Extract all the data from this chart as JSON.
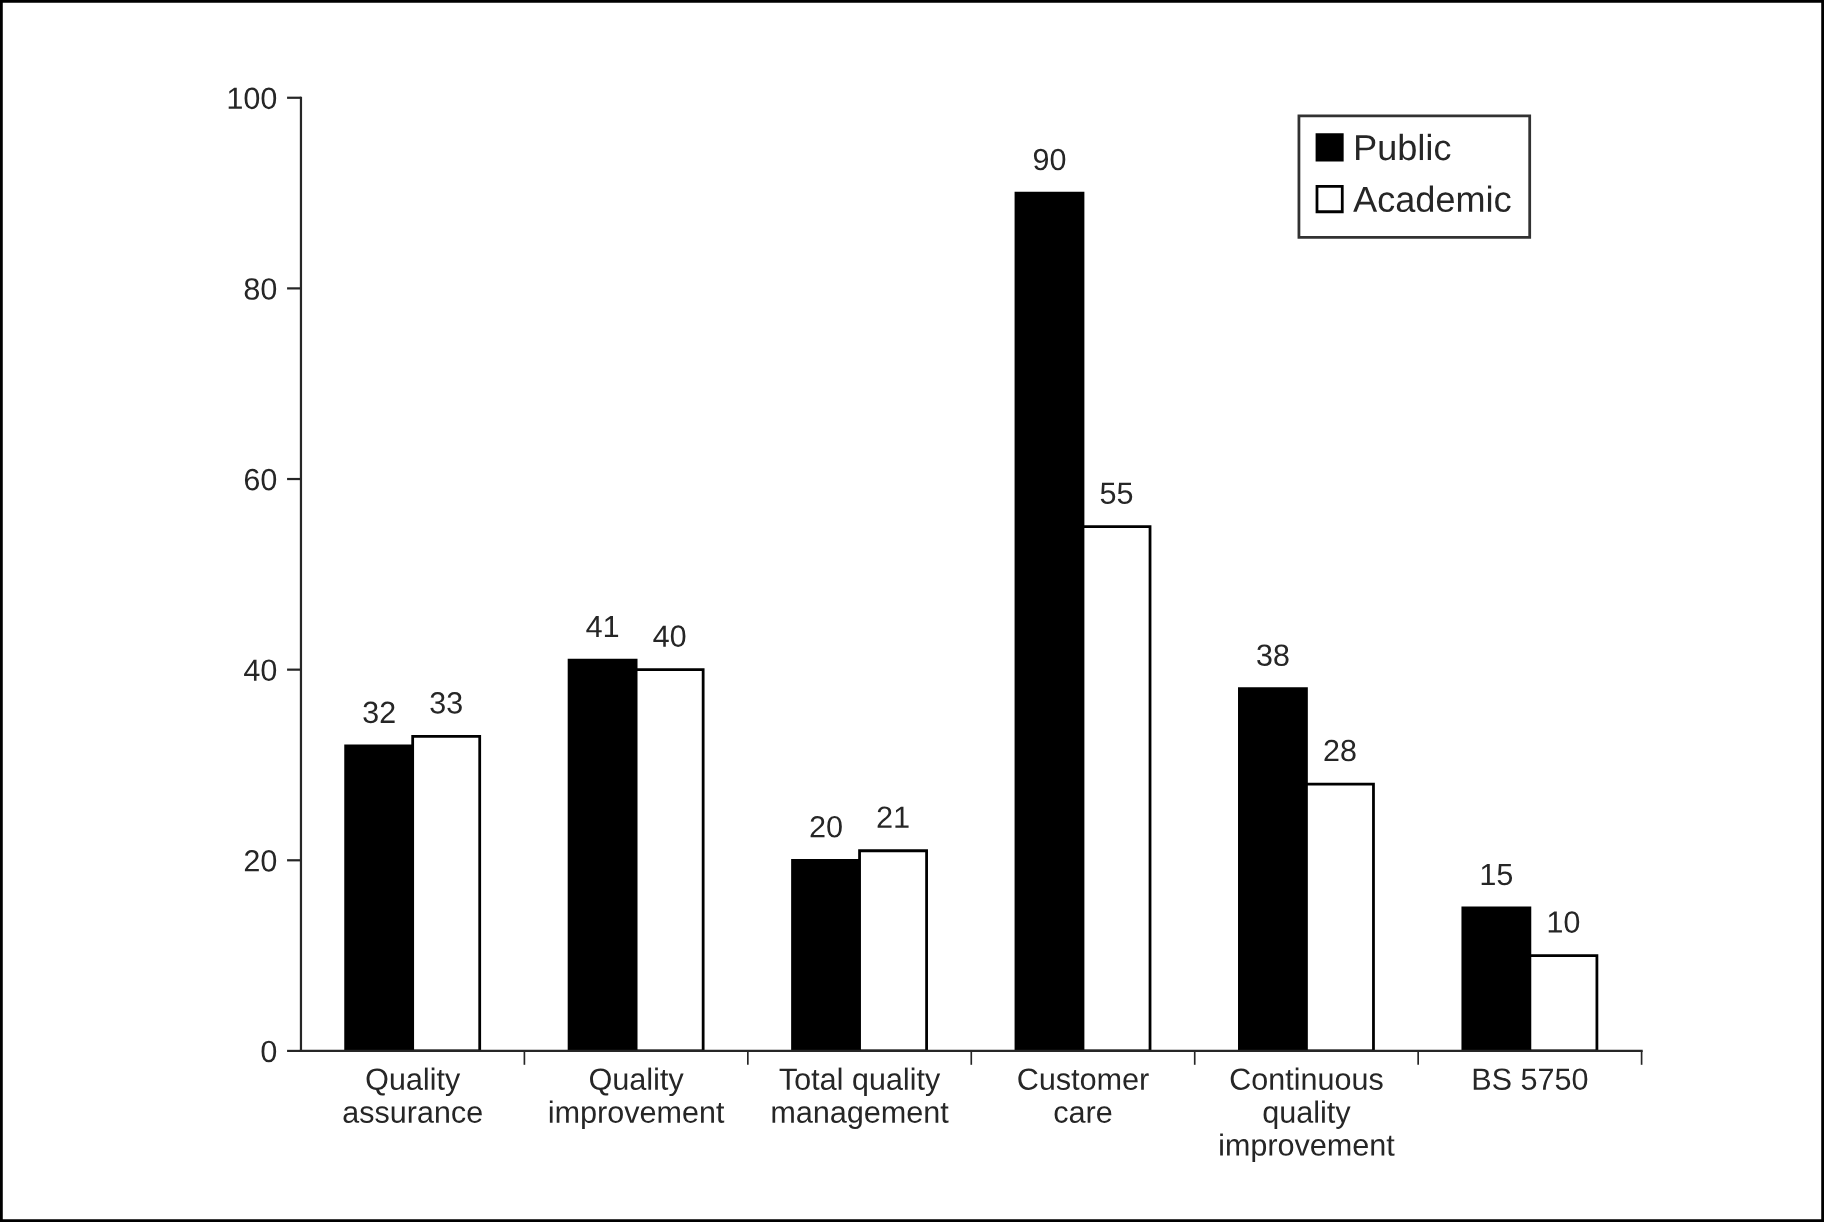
{
  "chart_data": {
    "type": "bar",
    "categories": [
      "Quality\nassurance",
      "Quality\nimprovement",
      "Total quality\nmanagement",
      "Customer\ncare",
      "Continuous\nquality\nimprovement",
      "BS 5750"
    ],
    "series": [
      {
        "name": "Public",
        "color": "#000000",
        "values": [
          32,
          41,
          20,
          90,
          38,
          15
        ]
      },
      {
        "name": "Academic",
        "color": "#ffffff",
        "values": [
          33,
          40,
          21,
          55,
          28,
          10
        ]
      }
    ],
    "ylim": [
      0,
      100
    ],
    "yticks": [
      0,
      20,
      40,
      60,
      80,
      100
    ],
    "data_labels": true,
    "legend": "top right",
    "grid": false
  }
}
